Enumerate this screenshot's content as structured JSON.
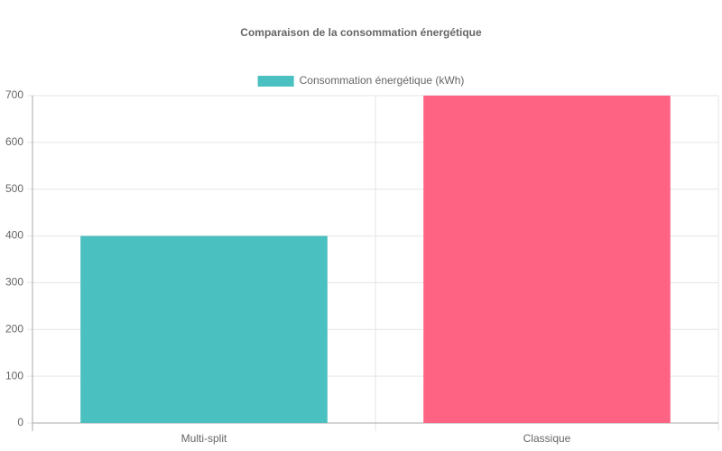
{
  "chart_data": {
    "type": "bar",
    "title": "Comparaison de la consommation énergétique",
    "categories": [
      "Multi-split",
      "Classique"
    ],
    "series": [
      {
        "name": "Consommation énergétique (kWh)",
        "colors": [
          "#4bc0c0",
          "#ff6384"
        ],
        "values": [
          400,
          700
        ]
      }
    ],
    "ylim": [
      0,
      700
    ],
    "yticks": [
      0,
      100,
      200,
      300,
      400,
      500,
      600,
      700
    ],
    "grid": true,
    "legend": "top"
  }
}
